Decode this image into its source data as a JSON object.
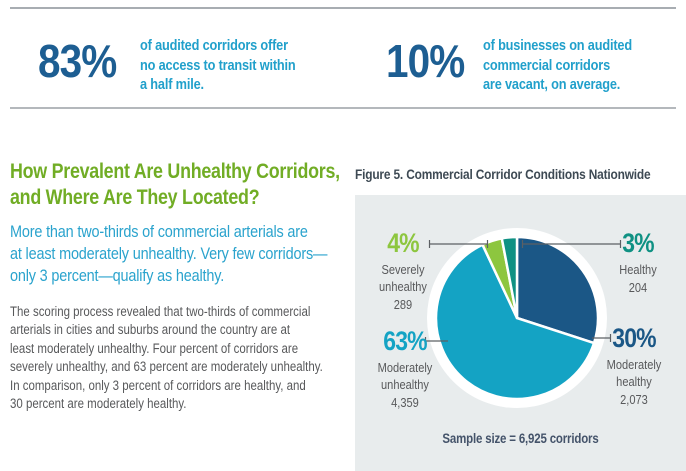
{
  "theme": {
    "accent_dark_blue": "#1d5e92",
    "accent_cyan": "#21a0cb",
    "heading_green": "#71ad25",
    "body_gray": "#58595b",
    "figure_title_color": "#3e4a54",
    "figure_bg": "#e8eced",
    "callout_line_color": "#5c6064"
  },
  "stats": [
    {
      "value": "83%",
      "text": "of audited corridors offer\nno access to transit within\na half mile."
    },
    {
      "value": "10%",
      "text": "of businesses on audited\ncommercial corridors\nare vacant, on average."
    }
  ],
  "article": {
    "heading": "How Prevalent Are Unhealthy Corridors,\nand Where Are They Located?",
    "lede": "More than two-thirds of commercial arterials are\nat least moderately unhealthy. Very few corridors—\nonly 3 percent—qualify as healthy.",
    "body": "The scoring process revealed that two-thirds of commercial\narterials in cities and suburbs around the country are at\nleast moderately unhealthy. Four percent of corridors are\nseverely unhealthy, and 63 percent are moderately unhealthy.\nIn comparison, only 3 percent of corridors are healthy, and\n30 percent are moderately healthy."
  },
  "figure": {
    "title": "Figure 5. Commercial Corridor Conditions Nationwide",
    "sample_note": "Sample size = 6,925 corridors"
  },
  "chart_data": {
    "type": "pie",
    "title": "Figure 5. Commercial Corridor Conditions Nationwide",
    "sample_size_label": "Sample size = 6,925 corridors",
    "total": 6925,
    "start_angle_deg": 0,
    "direction": "clockwise",
    "legend_position": "callout-labels",
    "slices": [
      {
        "label": "Moderately healthy",
        "display_label": "Moderately\nhealthy",
        "pct_label": "30%",
        "value_pct": 30,
        "count": 2073,
        "count_label": "2,073",
        "color": "#1b5786"
      },
      {
        "label": "Moderately unhealthy",
        "display_label": "Moderately\nunhealthy",
        "pct_label": "63%",
        "value_pct": 63,
        "count": 4359,
        "count_label": "4,359",
        "color": "#14a3c4"
      },
      {
        "label": "Severely unhealthy",
        "display_label": "Severely\nunhealthy",
        "pct_label": "4%",
        "value_pct": 4,
        "count": 289,
        "count_label": "289",
        "color": "#8dc63f"
      },
      {
        "label": "Healthy",
        "display_label": "Healthy",
        "pct_label": "3%",
        "value_pct": 3,
        "count": 204,
        "count_label": "204",
        "color": "#0f9183"
      }
    ]
  }
}
